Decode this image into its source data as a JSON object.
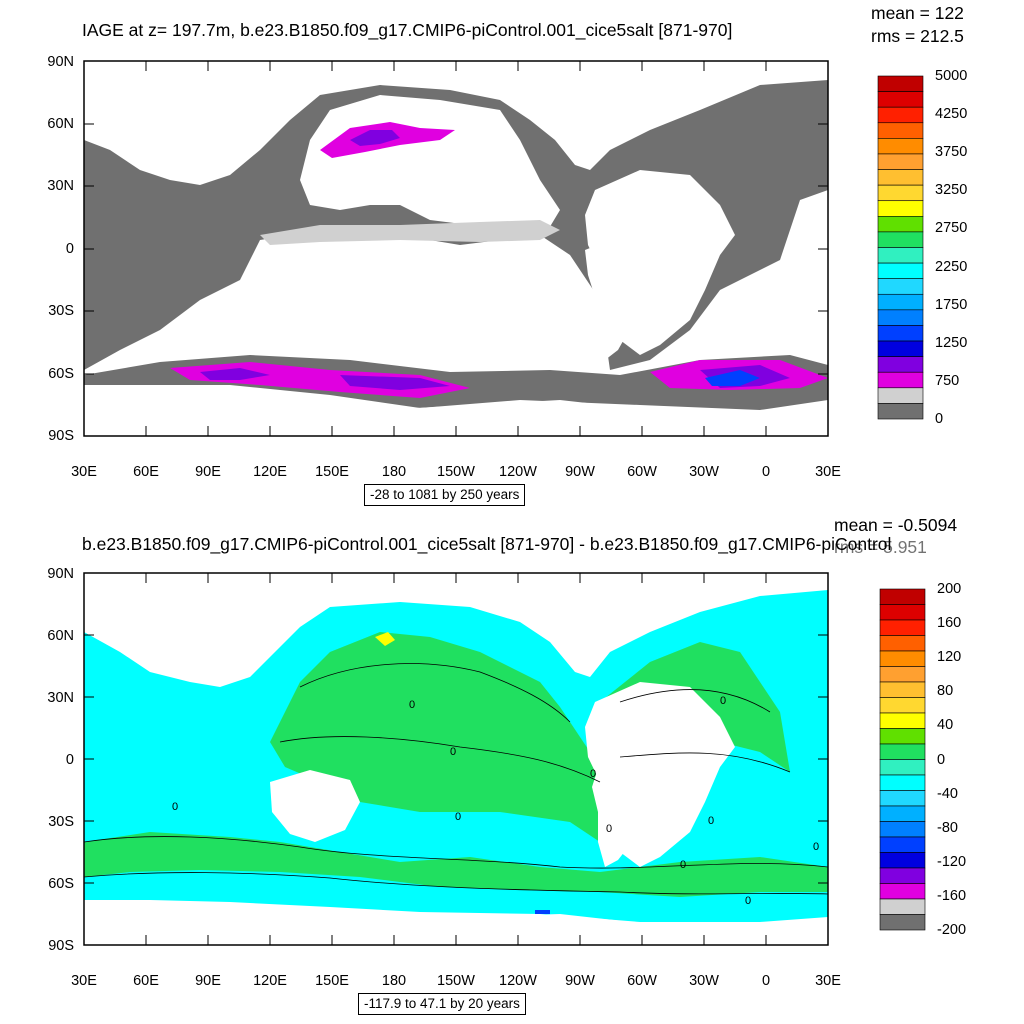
{
  "top": {
    "title": "IAGE at z= 197.7m, b.e23.B1850.f09_g17.CMIP6-piControl.001_cice5salt [871-970]",
    "stats": {
      "mean": "mean = 122",
      "rms": "rms = 212.5"
    },
    "y_ticks": [
      "90N",
      "60N",
      "30N",
      "0",
      "30S",
      "60S",
      "90S"
    ],
    "x_ticks": [
      "30E",
      "60E",
      "90E",
      "120E",
      "150E",
      "180",
      "150W",
      "120W",
      "90W",
      "60W",
      "30W",
      "0",
      "30E"
    ],
    "caption": "-28 to 1081 by 250 years",
    "colorbar": {
      "colors": [
        "#c00000",
        "#dd0000",
        "#ff2000",
        "#ff6000",
        "#ff8c00",
        "#ffa030",
        "#ffbf30",
        "#ffd830",
        "#ffff00",
        "#60e000",
        "#20e060",
        "#30f0c0",
        "#00ffff",
        "#20d8ff",
        "#00b0ff",
        "#0080ff",
        "#0040ff",
        "#0000e0",
        "#8000e0",
        "#e000e0",
        "#d0d0d0",
        "#707070"
      ],
      "labels": [
        "5000",
        "4250",
        "3750",
        "3250",
        "2750",
        "2250",
        "1750",
        "1250",
        "750",
        "0"
      ]
    }
  },
  "bottom": {
    "title": "b.e23.B1850.f09_g17.CMIP6-piControl.001_cice5salt [871-970] - b.e23.B1850.f09_g17.CMIP6-piControl",
    "stats": {
      "mean": "mean = -0.5094",
      "rms": "rms = 5.951"
    },
    "y_ticks": [
      "90N",
      "60N",
      "30N",
      "0",
      "30S",
      "60S",
      "90S"
    ],
    "x_ticks": [
      "30E",
      "60E",
      "90E",
      "120E",
      "150E",
      "180",
      "150W",
      "120W",
      "90W",
      "60W",
      "30W",
      "0",
      "30E"
    ],
    "caption": "-117.9 to 47.1 by 20 years",
    "contour_label": "0",
    "colorbar": {
      "colors": [
        "#c00000",
        "#dd0000",
        "#ff2000",
        "#ff6000",
        "#ff8c00",
        "#ffa030",
        "#ffbf30",
        "#ffd830",
        "#ffff00",
        "#60e000",
        "#20e060",
        "#30f0c0",
        "#00ffff",
        "#20d8ff",
        "#00b0ff",
        "#0080ff",
        "#0040ff",
        "#0000e0",
        "#8000e0",
        "#e000e0",
        "#d0d0d0",
        "#707070"
      ],
      "labels": [
        "200",
        "160",
        "120",
        "80",
        "40",
        "0",
        "-40",
        "-80",
        "-120",
        "-160",
        "-200"
      ]
    }
  }
}
